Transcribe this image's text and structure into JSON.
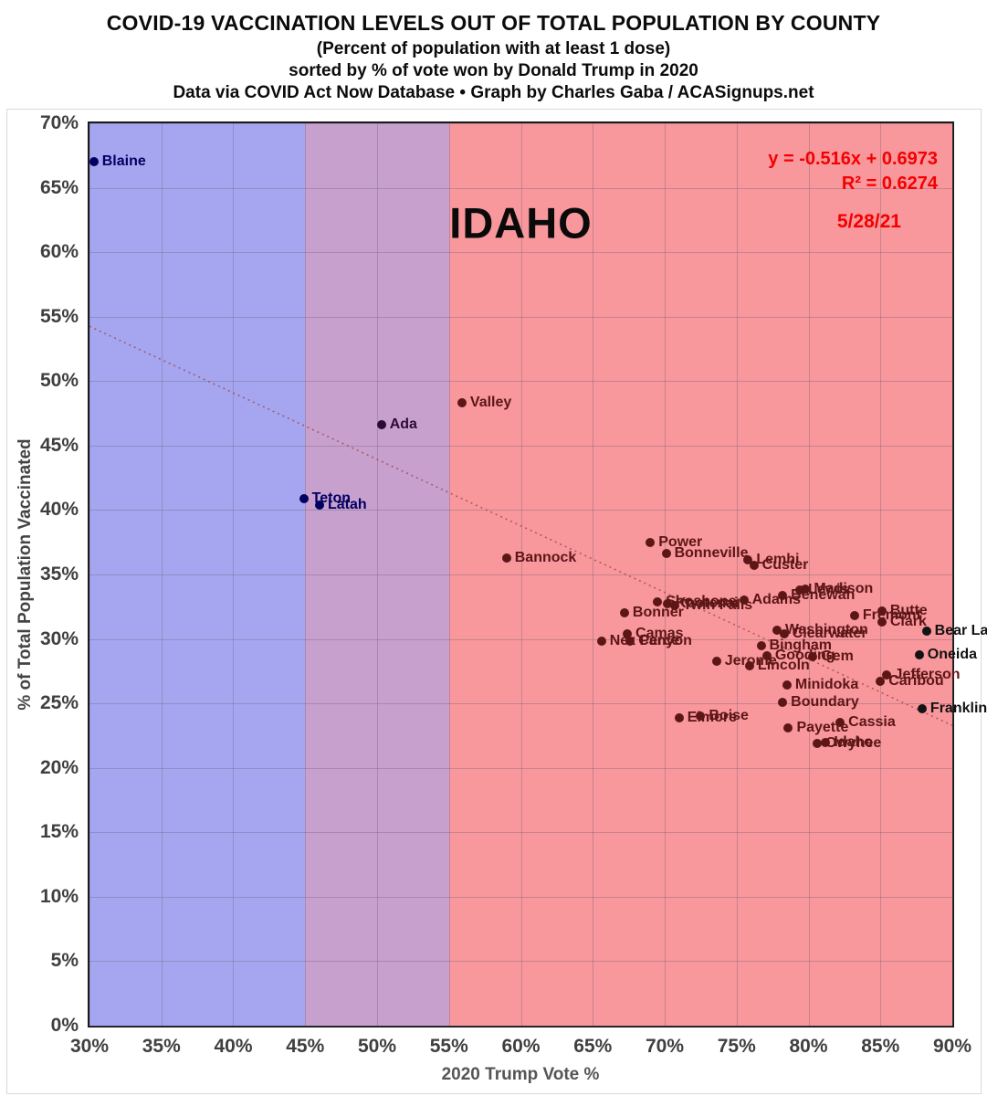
{
  "header": {
    "title": "COVID-19 VACCINATION LEVELS OUT OF TOTAL POPULATION BY COUNTY",
    "subtitle1": "(Percent of population with at least 1 dose)",
    "subtitle2": "sorted by % of vote won by Donald Trump in 2020",
    "subtitle3": "Data via COVID Act Now Database • Graph by Charles Gaba / ACASignups.net"
  },
  "annotations": {
    "state_label": "IDAHO",
    "equation": "y = -0.516x + 0.6973",
    "r_squared": "R² = 0.6274",
    "date": "5/28/21",
    "annotation_color": "#f40000"
  },
  "chart_data": {
    "type": "scatter",
    "title": "COVID-19 VACCINATION LEVELS OUT OF TOTAL POPULATION BY COUNTY",
    "xlabel": "2020 Trump Vote %",
    "ylabel": "% of Total Population Vaccinated",
    "xlim": [
      30,
      90
    ],
    "ylim": [
      0,
      70
    ],
    "grid": true,
    "x_ticks": [
      {
        "v": 30,
        "label": "30%"
      },
      {
        "v": 35,
        "label": "35%"
      },
      {
        "v": 40,
        "label": "40%"
      },
      {
        "v": 45,
        "label": "45%"
      },
      {
        "v": 50,
        "label": "50%"
      },
      {
        "v": 55,
        "label": "55%"
      },
      {
        "v": 60,
        "label": "60%"
      },
      {
        "v": 65,
        "label": "65%"
      },
      {
        "v": 70,
        "label": "70%"
      },
      {
        "v": 75,
        "label": "75%"
      },
      {
        "v": 80,
        "label": "80%"
      },
      {
        "v": 85,
        "label": "85%"
      },
      {
        "v": 90,
        "label": "90%"
      }
    ],
    "y_ticks": [
      {
        "v": 0,
        "label": "0%"
      },
      {
        "v": 5,
        "label": "5%"
      },
      {
        "v": 10,
        "label": "10%"
      },
      {
        "v": 15,
        "label": "15%"
      },
      {
        "v": 20,
        "label": "20%"
      },
      {
        "v": 25,
        "label": "25%"
      },
      {
        "v": 30,
        "label": "30%"
      },
      {
        "v": 35,
        "label": "35%"
      },
      {
        "v": 40,
        "label": "40%"
      },
      {
        "v": 45,
        "label": "45%"
      },
      {
        "v": 50,
        "label": "50%"
      },
      {
        "v": 55,
        "label": "55%"
      },
      {
        "v": 60,
        "label": "60%"
      },
      {
        "v": 65,
        "label": "65%"
      },
      {
        "v": 70,
        "label": "70%"
      }
    ],
    "bands": [
      {
        "name": "blue-band",
        "range": [
          30,
          45
        ],
        "color": "#a6a6f0"
      },
      {
        "name": "purple-band",
        "range": [
          45,
          55
        ],
        "color": "#c7a0cd"
      },
      {
        "name": "red-band",
        "range": [
          55,
          90
        ],
        "color": "#f8979c"
      }
    ],
    "trendline": {
      "slope": -0.516,
      "intercept": 0.6973,
      "color": "rgba(150,70,70,0.75)"
    },
    "colors": {
      "navy": "#000061",
      "purple": "#2d0b33",
      "red": "#5c1616",
      "black": "#131313"
    },
    "points": [
      {
        "name": "Blaine",
        "x": 30.3,
        "y": 67.0,
        "c": "navy"
      },
      {
        "name": "Teton",
        "x": 44.9,
        "y": 40.9,
        "c": "navy"
      },
      {
        "name": "Latah",
        "x": 46.0,
        "y": 40.4,
        "c": "navy"
      },
      {
        "name": "Ada",
        "x": 50.3,
        "y": 46.6,
        "c": "purple"
      },
      {
        "name": "Valley",
        "x": 55.9,
        "y": 48.3,
        "c": "red"
      },
      {
        "name": "Bannock",
        "x": 59.0,
        "y": 36.3,
        "c": "red"
      },
      {
        "name": "Power",
        "x": 69.0,
        "y": 37.5,
        "c": "red"
      },
      {
        "name": "Bonneville",
        "x": 70.1,
        "y": 36.6,
        "c": "red"
      },
      {
        "name": "Lemhi",
        "x": 75.8,
        "y": 36.1,
        "c": "red"
      },
      {
        "name": "Custer",
        "x": 76.2,
        "y": 35.7,
        "c": "red"
      },
      {
        "name": "Shoshone",
        "x": 69.5,
        "y": 32.9,
        "c": "red"
      },
      {
        "name": "Kootenai",
        "x": 70.2,
        "y": 32.75,
        "c": "red"
      },
      {
        "name": "Twin Falls",
        "x": 70.7,
        "y": 32.6,
        "c": "red"
      },
      {
        "name": "Adams",
        "x": 75.5,
        "y": 33.0,
        "c": "red"
      },
      {
        "name": "Benewah",
        "x": 78.2,
        "y": 33.4,
        "c": "red"
      },
      {
        "name": "Lewis",
        "x": 79.4,
        "y": 33.8,
        "c": "red"
      },
      {
        "name": "Madison",
        "x": 79.8,
        "y": 33.9,
        "c": "red"
      },
      {
        "name": "Bonner",
        "x": 67.2,
        "y": 32.0,
        "c": "red"
      },
      {
        "name": "Fremont",
        "x": 83.2,
        "y": 31.8,
        "c": "red"
      },
      {
        "name": "Butte",
        "x": 85.1,
        "y": 32.2,
        "c": "red"
      },
      {
        "name": "Clark",
        "x": 85.1,
        "y": 31.3,
        "c": "red"
      },
      {
        "name": "Bear Lake",
        "x": 88.2,
        "y": 30.6,
        "c": "black"
      },
      {
        "name": "Camas",
        "x": 67.4,
        "y": 30.4,
        "c": "red"
      },
      {
        "name": "Nez Perce",
        "x": 65.6,
        "y": 29.8,
        "c": "red"
      },
      {
        "name": "Canyon",
        "x": 67.6,
        "y": 29.8,
        "c": "red"
      },
      {
        "name": "Washington",
        "x": 77.8,
        "y": 30.7,
        "c": "red"
      },
      {
        "name": "Clearwater",
        "x": 78.3,
        "y": 30.4,
        "c": "red"
      },
      {
        "name": "Bingham",
        "x": 76.7,
        "y": 29.5,
        "c": "red"
      },
      {
        "name": "Jerome",
        "x": 73.6,
        "y": 28.3,
        "c": "red"
      },
      {
        "name": "Gooding",
        "x": 77.1,
        "y": 28.7,
        "c": "red"
      },
      {
        "name": "Gem",
        "x": 80.3,
        "y": 28.6,
        "c": "red"
      },
      {
        "name": "Lincoln",
        "x": 75.9,
        "y": 27.9,
        "c": "red"
      },
      {
        "name": "Oneida",
        "x": 87.7,
        "y": 28.8,
        "c": "black"
      },
      {
        "name": "Jefferson",
        "x": 85.4,
        "y": 27.2,
        "c": "red"
      },
      {
        "name": "Caribou",
        "x": 85.0,
        "y": 26.7,
        "c": "red"
      },
      {
        "name": "Minidoka",
        "x": 78.5,
        "y": 26.4,
        "c": "red"
      },
      {
        "name": "Boundary",
        "x": 78.2,
        "y": 25.1,
        "c": "red"
      },
      {
        "name": "Elmore",
        "x": 71.0,
        "y": 23.9,
        "c": "red"
      },
      {
        "name": "Boise",
        "x": 72.5,
        "y": 24.0,
        "c": "red"
      },
      {
        "name": "Payette",
        "x": 78.6,
        "y": 23.1,
        "c": "red"
      },
      {
        "name": "Cassia",
        "x": 82.2,
        "y": 23.5,
        "c": "red"
      },
      {
        "name": "Owyhee",
        "x": 80.6,
        "y": 21.9,
        "c": "red"
      },
      {
        "name": "Idaho",
        "x": 81.2,
        "y": 21.95,
        "c": "red"
      },
      {
        "name": "Franklin",
        "x": 87.9,
        "y": 24.6,
        "c": "black"
      }
    ]
  }
}
